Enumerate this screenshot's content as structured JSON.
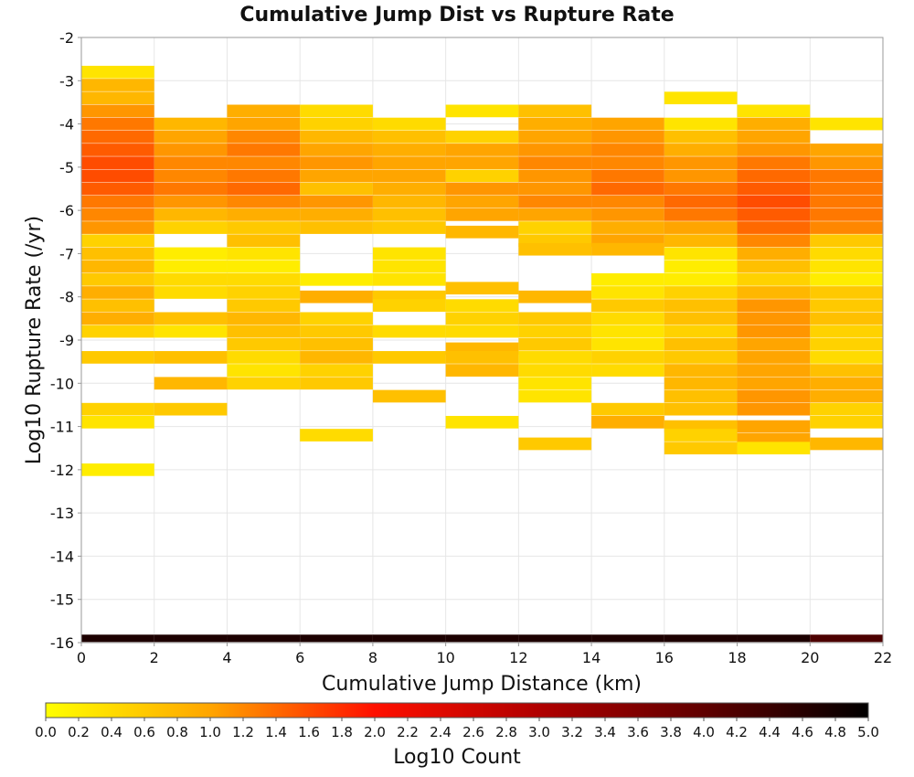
{
  "chart_data": {
    "type": "heatmap",
    "title": "Cumulative Jump Dist vs Rupture Rate",
    "xlabel": "Cumulative Jump Distance (km)",
    "ylabel": "Log10 Rupture Rate (/yr)",
    "xlim": [
      0,
      22
    ],
    "ylim": [
      -16,
      -2
    ],
    "x_ticks": [
      0,
      2,
      4,
      6,
      8,
      10,
      12,
      14,
      16,
      18,
      20,
      22
    ],
    "y_ticks": [
      -2,
      -3,
      -4,
      -5,
      -6,
      -7,
      -8,
      -9,
      -10,
      -11,
      -12,
      -13,
      -14,
      -15,
      -16
    ],
    "grid": true,
    "x_bin_width": 2,
    "y_bin_height": 0.29,
    "colorbar": {
      "label": "Log10 Count",
      "range": [
        0.0,
        5.0
      ],
      "ticks": [
        "0.0",
        "0.2",
        "0.4",
        "0.6",
        "0.8",
        "1.0",
        "1.2",
        "1.4",
        "1.6",
        "1.8",
        "2.0",
        "2.2",
        "2.4",
        "2.6",
        "2.8",
        "3.0",
        "3.2",
        "3.4",
        "3.6",
        "3.8",
        "4.0",
        "4.2",
        "4.4",
        "4.6",
        "4.8",
        "5.0"
      ],
      "placement": "bottom"
    },
    "bottom_row": {
      "y": -15.9,
      "values": [
        4.7,
        4.7,
        4.7,
        4.7,
        4.7,
        4.7,
        4.7,
        4.7,
        4.7,
        4.7,
        4.2
      ]
    },
    "columns": [
      {
        "x": 1,
        "cells": [
          [
            -2.8,
            0.3
          ],
          [
            -3.1,
            0.8
          ],
          [
            -3.4,
            0.8
          ],
          [
            -3.7,
            1.1
          ],
          [
            -4.0,
            1.3
          ],
          [
            -4.3,
            1.4
          ],
          [
            -4.6,
            1.5
          ],
          [
            -4.9,
            1.6
          ],
          [
            -5.2,
            1.6
          ],
          [
            -5.5,
            1.5
          ],
          [
            -5.8,
            1.3
          ],
          [
            -6.1,
            1.2
          ],
          [
            -6.4,
            1.1
          ],
          [
            -6.7,
            0.5
          ],
          [
            -7.0,
            0.7
          ],
          [
            -7.3,
            0.8
          ],
          [
            -7.6,
            0.6
          ],
          [
            -7.9,
            0.9
          ],
          [
            -8.2,
            0.7
          ],
          [
            -8.5,
            0.9
          ],
          [
            -8.8,
            0.5
          ],
          [
            -9.4,
            0.6
          ],
          [
            -10.6,
            0.5
          ],
          [
            -10.9,
            0.3
          ],
          [
            -12.0,
            0.2
          ]
        ]
      },
      {
        "x": 3,
        "cells": [
          [
            -4.0,
            0.8
          ],
          [
            -4.3,
            1.0
          ],
          [
            -4.6,
            1.1
          ],
          [
            -4.9,
            1.2
          ],
          [
            -5.2,
            1.2
          ],
          [
            -5.5,
            1.3
          ],
          [
            -5.8,
            1.1
          ],
          [
            -6.1,
            0.8
          ],
          [
            -6.4,
            0.5
          ],
          [
            -7.0,
            0.2
          ],
          [
            -7.3,
            0.2
          ],
          [
            -7.6,
            0.4
          ],
          [
            -7.9,
            0.4
          ],
          [
            -8.5,
            0.7
          ],
          [
            -8.8,
            0.3
          ],
          [
            -9.4,
            0.7
          ],
          [
            -10.0,
            0.8
          ],
          [
            -10.6,
            0.6
          ]
        ]
      },
      {
        "x": 5,
        "cells": [
          [
            -3.7,
            0.9
          ],
          [
            -4.0,
            1.0
          ],
          [
            -4.3,
            1.2
          ],
          [
            -4.6,
            1.3
          ],
          [
            -4.9,
            1.2
          ],
          [
            -5.2,
            1.3
          ],
          [
            -5.5,
            1.4
          ],
          [
            -5.8,
            1.2
          ],
          [
            -6.1,
            0.9
          ],
          [
            -6.4,
            0.6
          ],
          [
            -6.7,
            0.7
          ],
          [
            -7.0,
            0.3
          ],
          [
            -7.3,
            0.2
          ],
          [
            -7.6,
            0.4
          ],
          [
            -7.9,
            0.5
          ],
          [
            -8.2,
            0.6
          ],
          [
            -8.5,
            0.8
          ],
          [
            -8.8,
            0.7
          ],
          [
            -9.1,
            0.6
          ],
          [
            -9.4,
            0.4
          ],
          [
            -9.7,
            0.3
          ],
          [
            -10.0,
            0.5
          ]
        ]
      },
      {
        "x": 7,
        "cells": [
          [
            -3.7,
            0.4
          ],
          [
            -4.0,
            0.5
          ],
          [
            -4.3,
            0.8
          ],
          [
            -4.6,
            1.0
          ],
          [
            -4.9,
            1.1
          ],
          [
            -5.2,
            1.0
          ],
          [
            -5.5,
            0.7
          ],
          [
            -5.8,
            1.1
          ],
          [
            -6.1,
            0.9
          ],
          [
            -6.4,
            0.7
          ],
          [
            -7.6,
            0.2
          ],
          [
            -8.0,
            0.9
          ],
          [
            -8.5,
            0.5
          ],
          [
            -8.8,
            0.6
          ],
          [
            -9.1,
            0.7
          ],
          [
            -9.4,
            0.8
          ],
          [
            -9.7,
            0.5
          ],
          [
            -10.0,
            0.6
          ],
          [
            -11.2,
            0.4
          ]
        ]
      },
      {
        "x": 9,
        "cells": [
          [
            -4.0,
            0.4
          ],
          [
            -4.3,
            0.7
          ],
          [
            -4.6,
            0.9
          ],
          [
            -4.9,
            1.0
          ],
          [
            -5.2,
            1.0
          ],
          [
            -5.5,
            0.9
          ],
          [
            -5.8,
            0.8
          ],
          [
            -6.1,
            0.7
          ],
          [
            -6.4,
            0.6
          ],
          [
            -7.0,
            0.3
          ],
          [
            -7.3,
            0.3
          ],
          [
            -7.6,
            0.3
          ],
          [
            -8.0,
            0.6
          ],
          [
            -8.2,
            0.5
          ],
          [
            -8.8,
            0.4
          ],
          [
            -9.4,
            0.6
          ],
          [
            -10.3,
            0.7
          ]
        ]
      },
      {
        "x": 11,
        "cells": [
          [
            -3.7,
            0.3
          ],
          [
            -4.3,
            0.5
          ],
          [
            -4.6,
            1.0
          ],
          [
            -4.9,
            1.0
          ],
          [
            -5.2,
            0.5
          ],
          [
            -5.5,
            1.1
          ],
          [
            -5.8,
            1.0
          ],
          [
            -6.1,
            1.0
          ],
          [
            -6.5,
            0.8
          ],
          [
            -7.8,
            0.7
          ],
          [
            -8.2,
            0.4
          ],
          [
            -8.5,
            0.5
          ],
          [
            -8.8,
            0.4
          ],
          [
            -9.2,
            0.8
          ],
          [
            -9.4,
            0.7
          ],
          [
            -9.7,
            0.8
          ],
          [
            -10.9,
            0.3
          ]
        ]
      },
      {
        "x": 13,
        "cells": [
          [
            -3.7,
            0.7
          ],
          [
            -4.0,
            0.9
          ],
          [
            -4.3,
            1.0
          ],
          [
            -4.6,
            1.1
          ],
          [
            -4.9,
            1.2
          ],
          [
            -5.2,
            1.1
          ],
          [
            -5.5,
            1.1
          ],
          [
            -5.8,
            1.2
          ],
          [
            -6.1,
            1.0
          ],
          [
            -6.4,
            0.5
          ],
          [
            -6.7,
            0.6
          ],
          [
            -6.9,
            0.7
          ],
          [
            -8.0,
            0.8
          ],
          [
            -8.5,
            0.6
          ],
          [
            -8.8,
            0.5
          ],
          [
            -9.1,
            0.6
          ],
          [
            -9.4,
            0.4
          ],
          [
            -9.7,
            0.4
          ],
          [
            -10.0,
            0.3
          ],
          [
            -10.3,
            0.3
          ],
          [
            -11.4,
            0.6
          ]
        ]
      },
      {
        "x": 15,
        "cells": [
          [
            -4.0,
            1.0
          ],
          [
            -4.3,
            1.1
          ],
          [
            -4.6,
            1.2
          ],
          [
            -4.9,
            1.2
          ],
          [
            -5.2,
            1.3
          ],
          [
            -5.5,
            1.4
          ],
          [
            -5.8,
            1.2
          ],
          [
            -6.1,
            1.1
          ],
          [
            -6.4,
            0.9
          ],
          [
            -6.7,
            1.0
          ],
          [
            -6.9,
            0.8
          ],
          [
            -7.6,
            0.2
          ],
          [
            -7.9,
            0.3
          ],
          [
            -8.2,
            0.6
          ],
          [
            -8.5,
            0.4
          ],
          [
            -8.8,
            0.3
          ],
          [
            -9.1,
            0.3
          ],
          [
            -9.4,
            0.5
          ],
          [
            -9.7,
            0.4
          ],
          [
            -10.6,
            0.6
          ],
          [
            -10.9,
            0.9
          ]
        ]
      },
      {
        "x": 17,
        "cells": [
          [
            -3.4,
            0.3
          ],
          [
            -4.0,
            0.3
          ],
          [
            -4.3,
            0.7
          ],
          [
            -4.6,
            0.9
          ],
          [
            -4.9,
            1.1
          ],
          [
            -5.2,
            1.1
          ],
          [
            -5.5,
            1.3
          ],
          [
            -5.8,
            1.4
          ],
          [
            -6.1,
            1.3
          ],
          [
            -6.4,
            1.0
          ],
          [
            -6.7,
            0.8
          ],
          [
            -7.0,
            0.3
          ],
          [
            -7.3,
            0.2
          ],
          [
            -7.6,
            0.2
          ],
          [
            -7.9,
            0.5
          ],
          [
            -8.2,
            0.7
          ],
          [
            -8.5,
            0.7
          ],
          [
            -8.8,
            0.5
          ],
          [
            -9.1,
            0.7
          ],
          [
            -9.4,
            0.6
          ],
          [
            -9.7,
            0.8
          ],
          [
            -10.0,
            0.8
          ],
          [
            -10.3,
            0.7
          ],
          [
            -10.6,
            0.7
          ],
          [
            -11.0,
            0.7
          ],
          [
            -11.2,
            0.5
          ],
          [
            -11.5,
            0.6
          ]
        ]
      },
      {
        "x": 19,
        "cells": [
          [
            -3.7,
            0.3
          ],
          [
            -4.0,
            0.9
          ],
          [
            -4.3,
            1.0
          ],
          [
            -4.6,
            1.1
          ],
          [
            -4.9,
            1.3
          ],
          [
            -5.2,
            1.4
          ],
          [
            -5.5,
            1.5
          ],
          [
            -5.8,
            1.6
          ],
          [
            -6.1,
            1.5
          ],
          [
            -6.4,
            1.4
          ],
          [
            -6.7,
            1.2
          ],
          [
            -7.0,
            0.9
          ],
          [
            -7.3,
            0.7
          ],
          [
            -7.6,
            0.5
          ],
          [
            -7.9,
            0.8
          ],
          [
            -8.2,
            1.1
          ],
          [
            -8.5,
            1.1
          ],
          [
            -8.8,
            1.1
          ],
          [
            -9.1,
            1.0
          ],
          [
            -9.4,
            1.0
          ],
          [
            -9.7,
            1.0
          ],
          [
            -10.0,
            1.0
          ],
          [
            -10.3,
            1.1
          ],
          [
            -10.6,
            1.1
          ],
          [
            -11.0,
            1.0
          ],
          [
            -11.3,
            1.0
          ],
          [
            -11.5,
            0.3
          ]
        ]
      },
      {
        "x": 21,
        "cells": [
          [
            -4.0,
            0.3
          ],
          [
            -4.6,
            1.0
          ],
          [
            -4.9,
            1.1
          ],
          [
            -5.2,
            1.3
          ],
          [
            -5.5,
            1.3
          ],
          [
            -5.8,
            1.3
          ],
          [
            -6.1,
            1.3
          ],
          [
            -6.4,
            1.2
          ],
          [
            -6.7,
            0.6
          ],
          [
            -7.0,
            0.4
          ],
          [
            -7.3,
            0.3
          ],
          [
            -7.6,
            0.2
          ],
          [
            -7.9,
            0.6
          ],
          [
            -8.2,
            0.6
          ],
          [
            -8.5,
            0.7
          ],
          [
            -8.8,
            0.5
          ],
          [
            -9.1,
            0.5
          ],
          [
            -9.4,
            0.4
          ],
          [
            -9.7,
            0.7
          ],
          [
            -10.0,
            0.9
          ],
          [
            -10.3,
            0.9
          ],
          [
            -10.6,
            0.5
          ],
          [
            -10.9,
            0.5
          ],
          [
            -11.4,
            0.8
          ]
        ]
      }
    ]
  }
}
